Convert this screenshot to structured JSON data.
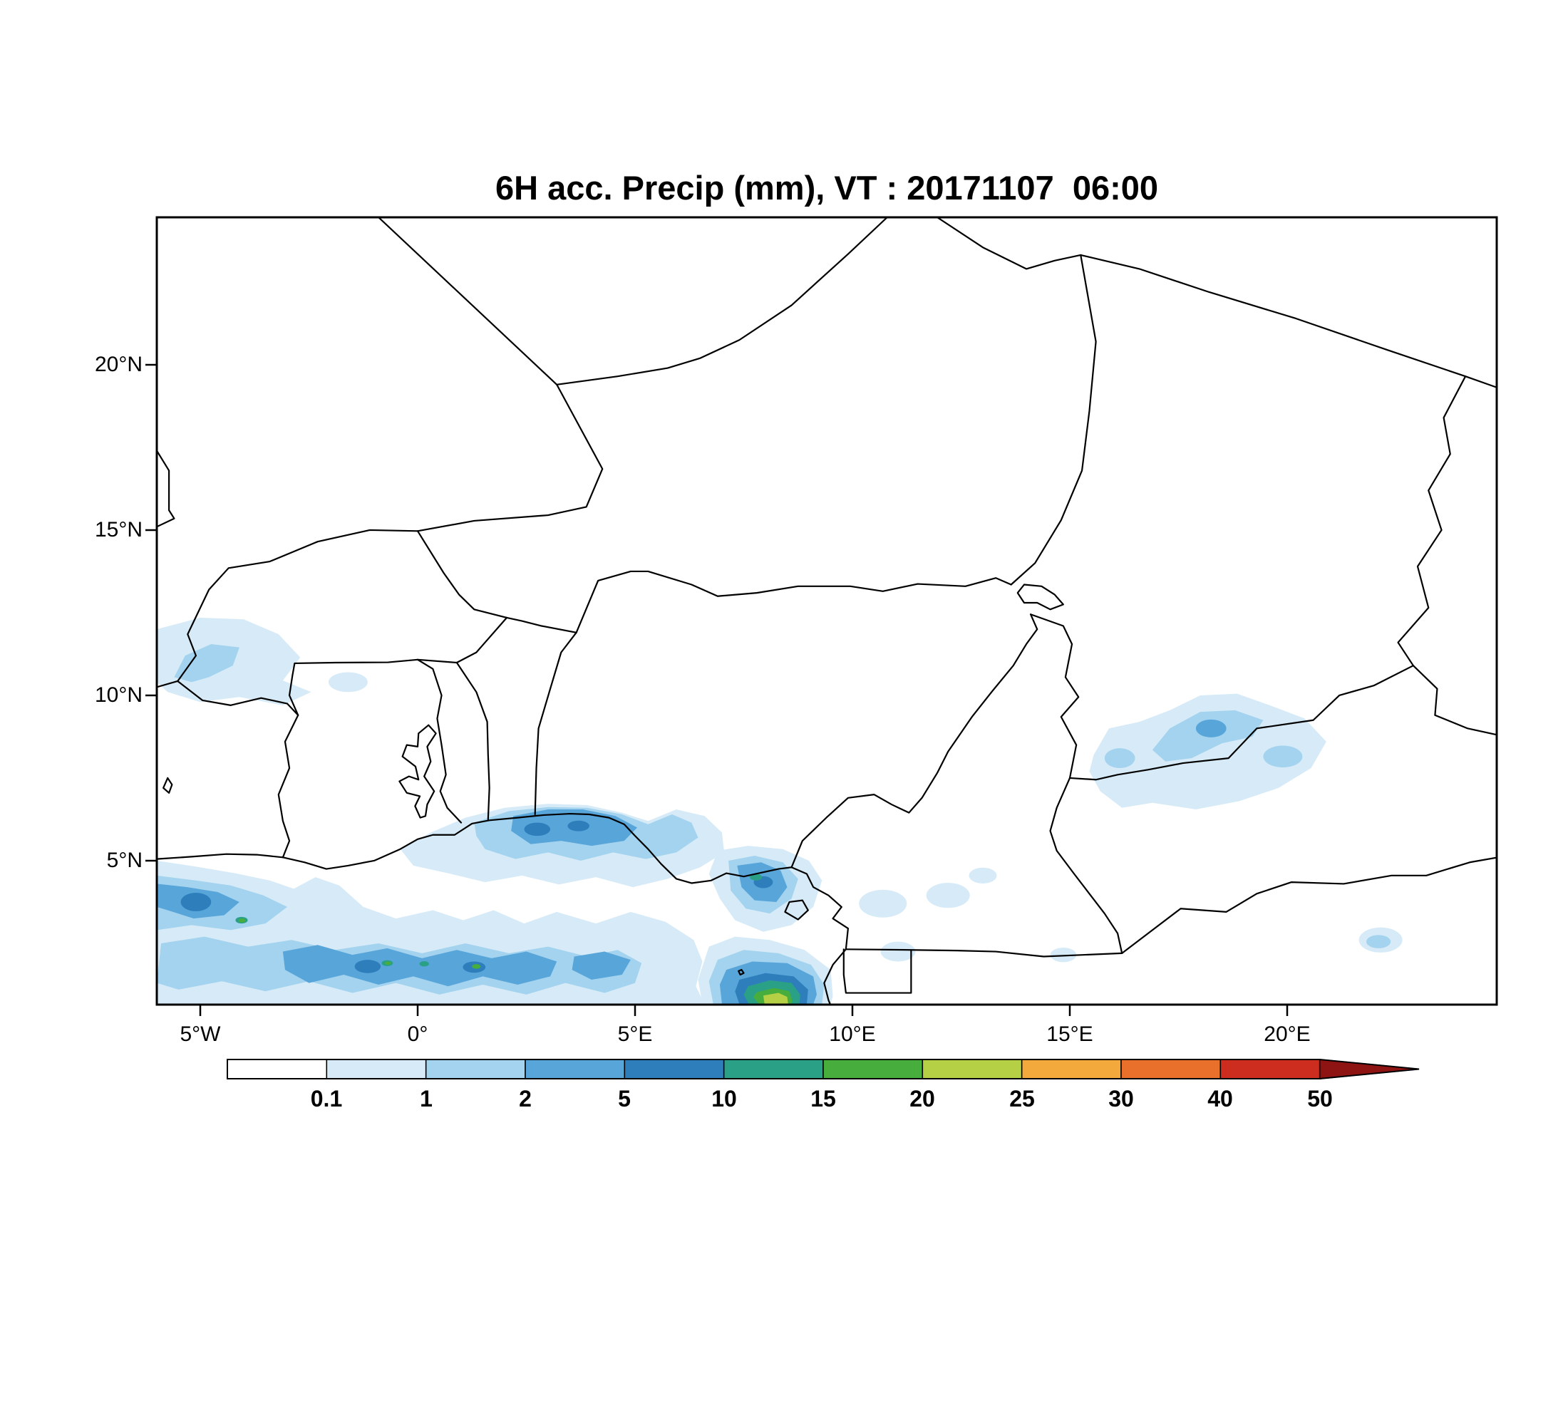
{
  "title": "6H acc. Precip (mm), VT : 20171107  06:00",
  "map": {
    "product": "6H acc. Precip",
    "units": "mm",
    "valid_time": "20171107 06:00",
    "regions": [
      "light precipitation band (0.1-5 mm) along Gulf of Guinea coast and offshore, 6W-10E / 0.7N-6.5N",
      "strong convective cell near 8.3E 0.9N with core above 20 mm",
      "moderate cell 2-10 mm near coast 7.5E-8.5E around 4.5N",
      "light patch 0.1-2 mm over Mali/Burkina area 5.5W-2.5W, 10N-12.3N",
      "light patch 0.1-5 mm over southern Chad 15.5E-21E, 6.5N-10N",
      "small light spot near 22E 2.6N"
    ]
  },
  "axes": {
    "lat": [
      "20°N",
      "15°N",
      "10°N",
      "5°N"
    ],
    "lon": [
      "5°W",
      "0°",
      "5°E",
      "10°E",
      "15°E",
      "20°E"
    ]
  },
  "colorbar": {
    "labels": [
      "0.1",
      "1",
      "2",
      "5",
      "10",
      "15",
      "20",
      "25",
      "30",
      "40",
      "50"
    ],
    "values": [
      0.1,
      1,
      2,
      5,
      10,
      15,
      20,
      25,
      30,
      40,
      50
    ],
    "colors": [
      "#ffffff",
      "#d6ebf7",
      "#a3d3ee",
      "#58a5da",
      "#2e7ebc",
      "#2aa187",
      "#47ad3c",
      "#b5d044",
      "#f3a93c",
      "#e8702a",
      "#cc2d1f",
      "#8e1313"
    ]
  }
}
